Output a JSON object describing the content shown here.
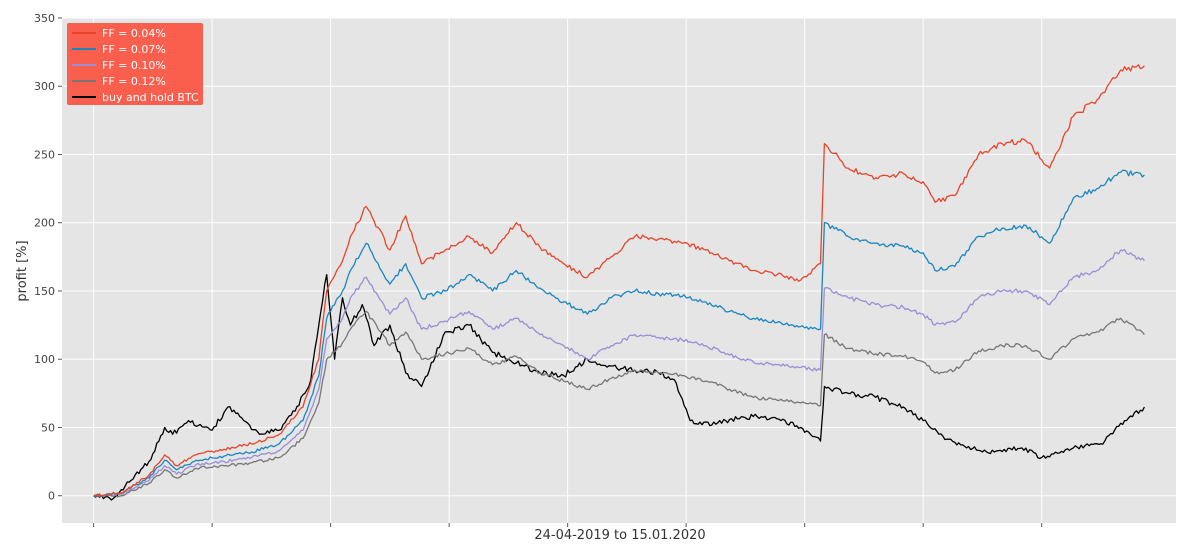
{
  "chart_data": {
    "type": "line",
    "xlabel": "24-04-2019 to 15.01.2020",
    "ylabel": "profit [%]",
    "ylim": [
      -20,
      350
    ],
    "yticks": [
      0,
      50,
      100,
      150,
      200,
      250,
      300,
      350
    ],
    "xrange": [
      "2019-04-24",
      "2020-01-15"
    ],
    "xticks": [
      "2019-04-24",
      "2019-05-24",
      "2019-06-23",
      "2019-07-23",
      "2019-08-22",
      "2019-09-21",
      "2019-10-21",
      "2019-11-20",
      "2019-12-20"
    ],
    "grid": true,
    "legend_position": "top-left",
    "legend_bg": "#fa5e4c",
    "plot_bg": "#e5e5e5",
    "series": [
      {
        "name": "FF = 0.04%",
        "color": "#e8442b",
        "x": [
          "2019-04-24",
          "2019-05-01",
          "2019-05-08",
          "2019-05-12",
          "2019-05-15",
          "2019-05-20",
          "2019-05-27",
          "2019-06-03",
          "2019-06-10",
          "2019-06-16",
          "2019-06-20",
          "2019-06-22",
          "2019-06-26",
          "2019-06-28",
          "2019-07-02",
          "2019-07-08",
          "2019-07-12",
          "2019-07-16",
          "2019-07-22",
          "2019-07-28",
          "2019-08-03",
          "2019-08-09",
          "2019-08-15",
          "2019-08-21",
          "2019-08-27",
          "2019-09-02",
          "2019-09-08",
          "2019-09-14",
          "2019-09-20",
          "2019-09-26",
          "2019-10-02",
          "2019-10-08",
          "2019-10-14",
          "2019-10-20",
          "2019-10-25",
          "2019-10-26",
          "2019-11-01",
          "2019-11-08",
          "2019-11-15",
          "2019-11-20",
          "2019-11-23",
          "2019-11-28",
          "2019-12-04",
          "2019-12-10",
          "2019-12-16",
          "2019-12-22",
          "2019-12-28",
          "2020-01-03",
          "2020-01-09",
          "2020-01-15"
        ],
        "values": [
          0,
          2,
          15,
          30,
          22,
          30,
          34,
          38,
          45,
          65,
          100,
          150,
          172,
          190,
          212,
          180,
          205,
          170,
          180,
          190,
          178,
          200,
          182,
          170,
          160,
          175,
          190,
          188,
          185,
          180,
          172,
          165,
          162,
          158,
          170,
          258,
          240,
          233,
          236,
          230,
          215,
          220,
          250,
          258,
          260,
          240,
          278,
          290,
          312,
          315
        ]
      },
      {
        "name": "FF = 0.07%",
        "color": "#1a86bf",
        "x": [
          "2019-04-24",
          "2019-05-01",
          "2019-05-08",
          "2019-05-12",
          "2019-05-15",
          "2019-05-20",
          "2019-05-27",
          "2019-06-03",
          "2019-06-10",
          "2019-06-16",
          "2019-06-20",
          "2019-06-22",
          "2019-06-26",
          "2019-06-28",
          "2019-07-02",
          "2019-07-08",
          "2019-07-12",
          "2019-07-16",
          "2019-07-22",
          "2019-07-28",
          "2019-08-03",
          "2019-08-09",
          "2019-08-15",
          "2019-08-21",
          "2019-08-27",
          "2019-09-02",
          "2019-09-08",
          "2019-09-14",
          "2019-09-20",
          "2019-09-26",
          "2019-10-02",
          "2019-10-08",
          "2019-10-14",
          "2019-10-20",
          "2019-10-25",
          "2019-10-26",
          "2019-11-01",
          "2019-11-08",
          "2019-11-15",
          "2019-11-20",
          "2019-11-23",
          "2019-11-28",
          "2019-12-04",
          "2019-12-10",
          "2019-12-16",
          "2019-12-22",
          "2019-12-28",
          "2020-01-03",
          "2020-01-09",
          "2020-01-15"
        ],
        "values": [
          0,
          2,
          13,
          26,
          19,
          26,
          29,
          32,
          38,
          55,
          88,
          130,
          150,
          165,
          185,
          155,
          170,
          145,
          150,
          162,
          150,
          165,
          152,
          142,
          133,
          145,
          150,
          148,
          146,
          142,
          135,
          130,
          127,
          124,
          122,
          200,
          190,
          185,
          183,
          178,
          165,
          168,
          190,
          196,
          198,
          185,
          218,
          225,
          237,
          235
        ]
      },
      {
        "name": "FF = 0.10%",
        "color": "#988ed5",
        "x": [
          "2019-04-24",
          "2019-05-01",
          "2019-05-08",
          "2019-05-12",
          "2019-05-15",
          "2019-05-20",
          "2019-05-27",
          "2019-06-03",
          "2019-06-10",
          "2019-06-16",
          "2019-06-20",
          "2019-06-22",
          "2019-06-26",
          "2019-06-28",
          "2019-07-02",
          "2019-07-08",
          "2019-07-12",
          "2019-07-16",
          "2019-07-22",
          "2019-07-28",
          "2019-08-03",
          "2019-08-09",
          "2019-08-15",
          "2019-08-21",
          "2019-08-27",
          "2019-09-02",
          "2019-09-08",
          "2019-09-14",
          "2019-09-20",
          "2019-09-26",
          "2019-10-02",
          "2019-10-08",
          "2019-10-14",
          "2019-10-20",
          "2019-10-25",
          "2019-10-26",
          "2019-11-01",
          "2019-11-08",
          "2019-11-15",
          "2019-11-20",
          "2019-11-23",
          "2019-11-28",
          "2019-12-04",
          "2019-12-10",
          "2019-12-16",
          "2019-12-22",
          "2019-12-28",
          "2020-01-03",
          "2020-01-09",
          "2020-01-15"
        ],
        "values": [
          0,
          1,
          11,
          22,
          16,
          23,
          25,
          28,
          33,
          48,
          78,
          115,
          130,
          145,
          160,
          133,
          145,
          122,
          128,
          135,
          122,
          130,
          118,
          110,
          100,
          110,
          118,
          116,
          114,
          110,
          103,
          98,
          96,
          94,
          92,
          152,
          145,
          140,
          138,
          133,
          125,
          127,
          145,
          150,
          150,
          140,
          160,
          165,
          180,
          172
        ]
      },
      {
        "name": "FF = 0.12%",
        "color": "#777777",
        "x": [
          "2019-04-24",
          "2019-05-01",
          "2019-05-08",
          "2019-05-12",
          "2019-05-15",
          "2019-05-20",
          "2019-05-27",
          "2019-06-03",
          "2019-06-10",
          "2019-06-16",
          "2019-06-20",
          "2019-06-22",
          "2019-06-26",
          "2019-06-28",
          "2019-07-02",
          "2019-07-08",
          "2019-07-12",
          "2019-07-16",
          "2019-07-22",
          "2019-07-28",
          "2019-08-03",
          "2019-08-09",
          "2019-08-15",
          "2019-08-21",
          "2019-08-27",
          "2019-09-02",
          "2019-09-08",
          "2019-09-14",
          "2019-09-20",
          "2019-09-26",
          "2019-10-02",
          "2019-10-08",
          "2019-10-14",
          "2019-10-20",
          "2019-10-25",
          "2019-10-26",
          "2019-11-01",
          "2019-11-08",
          "2019-11-15",
          "2019-11-20",
          "2019-11-23",
          "2019-11-28",
          "2019-12-04",
          "2019-12-10",
          "2019-12-16",
          "2019-12-22",
          "2019-12-28",
          "2020-01-03",
          "2020-01-09",
          "2020-01-15"
        ],
        "values": [
          0,
          0,
          9,
          19,
          13,
          20,
          22,
          24,
          28,
          42,
          68,
          100,
          112,
          122,
          135,
          110,
          120,
          100,
          104,
          108,
          96,
          102,
          90,
          84,
          78,
          86,
          92,
          90,
          88,
          84,
          78,
          72,
          70,
          68,
          66,
          118,
          108,
          104,
          102,
          98,
          90,
          92,
          106,
          110,
          110,
          100,
          115,
          120,
          130,
          118
        ]
      },
      {
        "name": "buy and hold BTC",
        "color": "#000000",
        "x": [
          "2019-04-24",
          "2019-04-29",
          "2019-05-03",
          "2019-05-08",
          "2019-05-12",
          "2019-05-14",
          "2019-05-18",
          "2019-05-24",
          "2019-05-28",
          "2019-06-01",
          "2019-06-05",
          "2019-06-10",
          "2019-06-14",
          "2019-06-18",
          "2019-06-20",
          "2019-06-22",
          "2019-06-24",
          "2019-06-26",
          "2019-06-28",
          "2019-07-01",
          "2019-07-04",
          "2019-07-08",
          "2019-07-12",
          "2019-07-16",
          "2019-07-22",
          "2019-07-28",
          "2019-08-03",
          "2019-08-07",
          "2019-08-11",
          "2019-08-15",
          "2019-08-21",
          "2019-08-27",
          "2019-09-02",
          "2019-09-08",
          "2019-09-14",
          "2019-09-18",
          "2019-09-22",
          "2019-09-25",
          "2019-10-01",
          "2019-10-08",
          "2019-10-15",
          "2019-10-20",
          "2019-10-25",
          "2019-10-26",
          "2019-11-01",
          "2019-11-08",
          "2019-11-15",
          "2019-11-20",
          "2019-11-24",
          "2019-12-01",
          "2019-12-08",
          "2019-12-15",
          "2019-12-20",
          "2019-12-28",
          "2020-01-04",
          "2020-01-10",
          "2020-01-15"
        ],
        "values": [
          0,
          -2,
          10,
          25,
          50,
          45,
          55,
          48,
          65,
          55,
          45,
          48,
          62,
          85,
          125,
          162,
          100,
          145,
          125,
          140,
          110,
          125,
          90,
          80,
          120,
          125,
          105,
          100,
          95,
          90,
          88,
          100,
          95,
          92,
          90,
          85,
          55,
          52,
          55,
          58,
          55,
          50,
          40,
          80,
          75,
          72,
          65,
          55,
          45,
          35,
          32,
          35,
          28,
          35,
          38,
          55,
          65
        ]
      }
    ]
  }
}
